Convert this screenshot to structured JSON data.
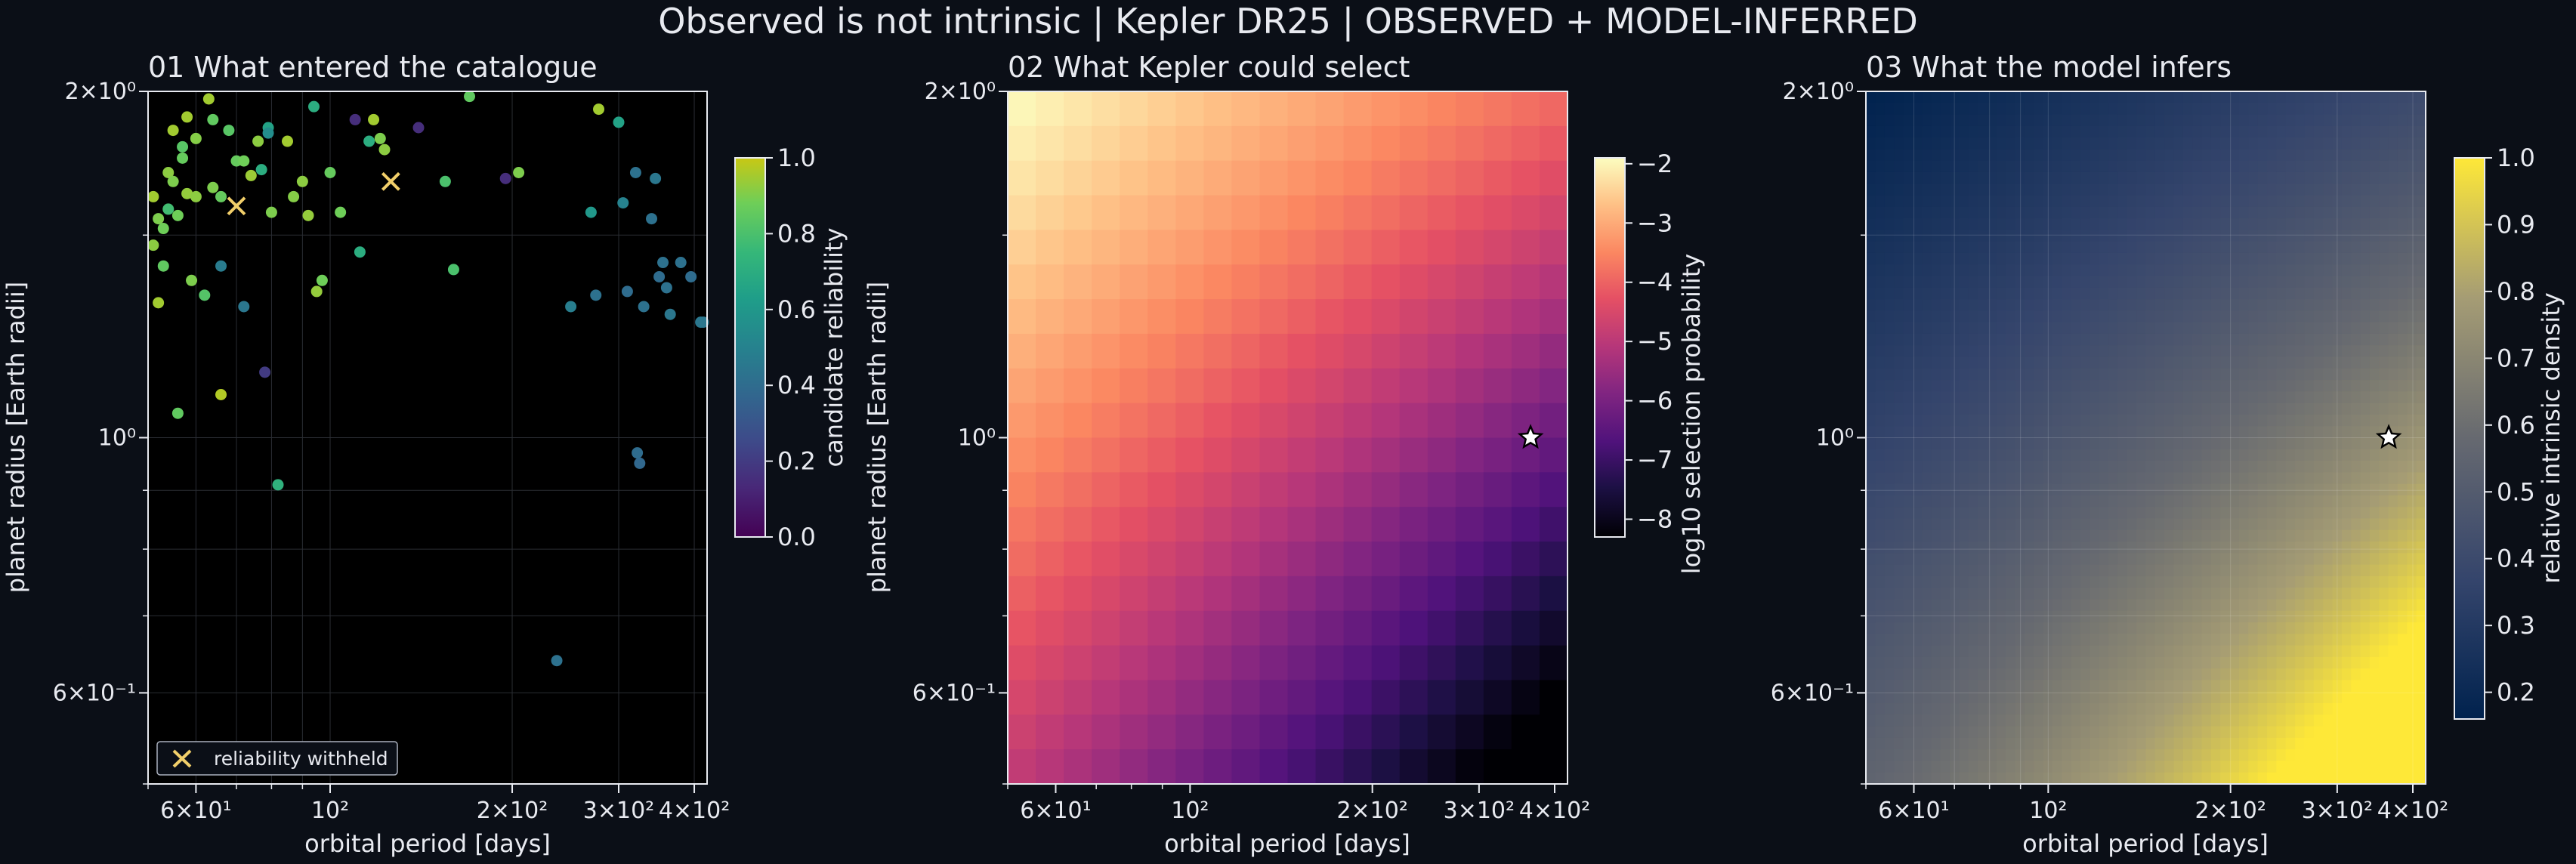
{
  "suptitle": "Observed is not intrinsic | Kepler DR25 | OBSERVED + MODEL-INFERRED",
  "chart_data": [
    {
      "type": "scatter",
      "title": "01  What entered the catalogue",
      "xlabel": "orbital period [days]",
      "ylabel": "planet radius [Earth radii]",
      "xscale": "log",
      "yscale": "log",
      "xlim": [
        50,
        420
      ],
      "ylim": [
        0.5,
        2.0
      ],
      "xticks": [
        {
          "v": 60,
          "label": "6×10¹"
        },
        {
          "v": 100,
          "label": "10²"
        },
        {
          "v": 200,
          "label": "2×10²"
        },
        {
          "v": 300,
          "label": "3×10²"
        },
        {
          "v": 400,
          "label": "4×10²"
        }
      ],
      "yticks": [
        {
          "v": 0.6,
          "label": "6×10⁻¹"
        },
        {
          "v": 1.0,
          "label": "10⁰"
        },
        {
          "v": 2.0,
          "label": "2×10⁰"
        }
      ],
      "colorbar": {
        "label": "candidate reliability",
        "min": 0.0,
        "max": 1.0,
        "ticks": [
          {
            "v": 0.0,
            "label": "0.0"
          },
          {
            "v": 0.2,
            "label": "0.2"
          },
          {
            "v": 0.4,
            "label": "0.4"
          },
          {
            "v": 0.6,
            "label": "0.6"
          },
          {
            "v": 0.8,
            "label": "0.8"
          },
          {
            "v": 1.0,
            "label": "1.0"
          }
        ],
        "colormap": "viridis"
      },
      "legend": {
        "label": "reliability withheld",
        "position": "lower-left"
      },
      "grid": true,
      "points": [
        {
          "x": 51,
          "y": 1.62,
          "c": 0.95
        },
        {
          "x": 51,
          "y": 1.47,
          "c": 0.92
        },
        {
          "x": 52,
          "y": 1.31,
          "c": 0.95
        },
        {
          "x": 52,
          "y": 1.55,
          "c": 0.9
        },
        {
          "x": 53,
          "y": 1.52,
          "c": 0.88
        },
        {
          "x": 53,
          "y": 1.41,
          "c": 0.85
        },
        {
          "x": 54,
          "y": 1.7,
          "c": 0.92
        },
        {
          "x": 54,
          "y": 1.58,
          "c": 0.78
        },
        {
          "x": 55,
          "y": 1.85,
          "c": 0.95
        },
        {
          "x": 55,
          "y": 1.67,
          "c": 0.9
        },
        {
          "x": 56,
          "y": 1.05,
          "c": 0.85
        },
        {
          "x": 56,
          "y": 1.56,
          "c": 0.88
        },
        {
          "x": 57,
          "y": 1.79,
          "c": 0.83
        },
        {
          "x": 57,
          "y": 1.75,
          "c": 0.86
        },
        {
          "x": 58,
          "y": 1.9,
          "c": 0.95
        },
        {
          "x": 58,
          "y": 1.63,
          "c": 0.93
        },
        {
          "x": 59,
          "y": 1.37,
          "c": 0.9
        },
        {
          "x": 60,
          "y": 1.82,
          "c": 0.91
        },
        {
          "x": 60,
          "y": 1.62,
          "c": 0.92
        },
        {
          "x": 62,
          "y": 1.33,
          "c": 0.82
        },
        {
          "x": 63,
          "y": 1.97,
          "c": 0.95
        },
        {
          "x": 64,
          "y": 1.65,
          "c": 0.9
        },
        {
          "x": 64,
          "y": 1.89,
          "c": 0.85
        },
        {
          "x": 66,
          "y": 1.09,
          "c": 0.97
        },
        {
          "x": 66,
          "y": 1.41,
          "c": 0.47
        },
        {
          "x": 66,
          "y": 1.62,
          "c": 0.86
        },
        {
          "x": 68,
          "y": 1.85,
          "c": 0.83
        },
        {
          "x": 70,
          "y": 1.74,
          "c": 0.86
        },
        {
          "x": 72,
          "y": 1.74,
          "c": 0.88
        },
        {
          "x": 72,
          "y": 1.3,
          "c": 0.45
        },
        {
          "x": 74,
          "y": 1.69,
          "c": 0.94
        },
        {
          "x": 76,
          "y": 1.81,
          "c": 0.92
        },
        {
          "x": 77,
          "y": 1.71,
          "c": 0.7
        },
        {
          "x": 78,
          "y": 1.14,
          "c": 0.2
        },
        {
          "x": 79,
          "y": 1.86,
          "c": 0.65
        },
        {
          "x": 79,
          "y": 1.84,
          "c": 0.55
        },
        {
          "x": 80,
          "y": 1.57,
          "c": 0.9
        },
        {
          "x": 82,
          "y": 0.91,
          "c": 0.72
        },
        {
          "x": 85,
          "y": 1.81,
          "c": 0.95
        },
        {
          "x": 87,
          "y": 1.62,
          "c": 0.91
        },
        {
          "x": 90,
          "y": 1.67,
          "c": 0.92
        },
        {
          "x": 92,
          "y": 1.56,
          "c": 0.93
        },
        {
          "x": 94,
          "y": 1.94,
          "c": 0.7
        },
        {
          "x": 95,
          "y": 1.34,
          "c": 0.93
        },
        {
          "x": 97,
          "y": 1.37,
          "c": 0.88
        },
        {
          "x": 100,
          "y": 1.7,
          "c": 0.86
        },
        {
          "x": 104,
          "y": 1.57,
          "c": 0.88
        },
        {
          "x": 110,
          "y": 1.89,
          "c": 0.15
        },
        {
          "x": 112,
          "y": 1.45,
          "c": 0.7
        },
        {
          "x": 116,
          "y": 1.81,
          "c": 0.7
        },
        {
          "x": 118,
          "y": 1.89,
          "c": 0.95
        },
        {
          "x": 121,
          "y": 1.82,
          "c": 0.9
        },
        {
          "x": 123,
          "y": 1.78,
          "c": 0.92
        },
        {
          "x": 140,
          "y": 1.86,
          "c": 0.15
        },
        {
          "x": 155,
          "y": 1.67,
          "c": 0.8
        },
        {
          "x": 160,
          "y": 1.4,
          "c": 0.8
        },
        {
          "x": 170,
          "y": 1.98,
          "c": 0.85
        },
        {
          "x": 195,
          "y": 1.68,
          "c": 0.15
        },
        {
          "x": 205,
          "y": 1.7,
          "c": 0.9
        },
        {
          "x": 237,
          "y": 0.64,
          "c": 0.42
        },
        {
          "x": 250,
          "y": 1.3,
          "c": 0.48
        },
        {
          "x": 270,
          "y": 1.57,
          "c": 0.6
        },
        {
          "x": 275,
          "y": 1.33,
          "c": 0.42
        },
        {
          "x": 278,
          "y": 1.93,
          "c": 0.95
        },
        {
          "x": 300,
          "y": 1.88,
          "c": 0.65
        },
        {
          "x": 305,
          "y": 1.6,
          "c": 0.5
        },
        {
          "x": 310,
          "y": 1.34,
          "c": 0.4
        },
        {
          "x": 320,
          "y": 1.7,
          "c": 0.42
        },
        {
          "x": 322,
          "y": 0.97,
          "c": 0.4
        },
        {
          "x": 325,
          "y": 0.95,
          "c": 0.38
        },
        {
          "x": 330,
          "y": 1.3,
          "c": 0.42
        },
        {
          "x": 340,
          "y": 1.55,
          "c": 0.42
        },
        {
          "x": 345,
          "y": 1.68,
          "c": 0.45
        },
        {
          "x": 350,
          "y": 1.38,
          "c": 0.4
        },
        {
          "x": 355,
          "y": 1.42,
          "c": 0.42
        },
        {
          "x": 360,
          "y": 1.35,
          "c": 0.42
        },
        {
          "x": 365,
          "y": 1.28,
          "c": 0.45
        },
        {
          "x": 380,
          "y": 1.42,
          "c": 0.42
        },
        {
          "x": 395,
          "y": 1.38,
          "c": 0.4
        },
        {
          "x": 410,
          "y": 1.26,
          "c": 0.45
        },
        {
          "x": 414,
          "y": 1.26,
          "c": 0.45
        }
      ],
      "withheld": [
        {
          "x": 70,
          "y": 1.59
        },
        {
          "x": 126,
          "y": 1.67
        }
      ]
    },
    {
      "type": "heatmap",
      "title": "02  What Kepler could select",
      "xlabel": "orbital period [days]",
      "ylabel": "planet radius [Earth radii]",
      "xscale": "log",
      "yscale": "log",
      "xlim": [
        50,
        420
      ],
      "ylim": [
        0.5,
        2.0
      ],
      "xticks": [
        {
          "v": 60,
          "label": "6×10¹"
        },
        {
          "v": 100,
          "label": "10²"
        },
        {
          "v": 200,
          "label": "2×10²"
        },
        {
          "v": 300,
          "label": "3×10²"
        },
        {
          "v": 400,
          "label": "4×10²"
        }
      ],
      "yticks": [
        {
          "v": 0.6,
          "label": "6×10⁻¹"
        },
        {
          "v": 1.0,
          "label": "10⁰"
        },
        {
          "v": 2.0,
          "label": "2×10⁰"
        }
      ],
      "colorbar": {
        "label": "log10 selection probability",
        "min": -8.3,
        "max": -1.9,
        "ticks": [
          {
            "v": -2,
            "label": "−2"
          },
          {
            "v": -3,
            "label": "−3"
          },
          {
            "v": -4,
            "label": "−4"
          },
          {
            "v": -5,
            "label": "−5"
          },
          {
            "v": -6,
            "label": "−6"
          },
          {
            "v": -7,
            "label": "−7"
          },
          {
            "v": -8,
            "label": "−8"
          }
        ],
        "colormap": "magma"
      },
      "grid_cells": {
        "nx": 20,
        "ny": 20
      },
      "value_at_corners": {
        "short_period_large_radius": -1.9,
        "long_period_large_radius": -3.9,
        "short_period_small_radius": -4.9,
        "long_period_small_radius": -8.3
      },
      "marker": {
        "x": 365,
        "y": 1.0,
        "symbol": "star"
      }
    },
    {
      "type": "heatmap",
      "title": "03  What the model infers",
      "xlabel": "orbital period [days]",
      "ylabel": "",
      "xscale": "log",
      "yscale": "log",
      "xlim": [
        50,
        420
      ],
      "ylim": [
        0.5,
        2.0
      ],
      "xticks": [
        {
          "v": 60,
          "label": "6×10¹"
        },
        {
          "v": 100,
          "label": "10²"
        },
        {
          "v": 200,
          "label": "2×10²"
        },
        {
          "v": 300,
          "label": "3×10²"
        },
        {
          "v": 400,
          "label": "4×10²"
        }
      ],
      "yticks": [
        {
          "v": 0.6,
          "label": "6×10⁻¹"
        },
        {
          "v": 1.0,
          "label": "10⁰"
        },
        {
          "v": 2.0,
          "label": "2×10⁰"
        }
      ],
      "colorbar": {
        "label": "relative intrinsic density",
        "min": 0.16,
        "max": 1.0,
        "ticks": [
          {
            "v": 0.2,
            "label": "0.2"
          },
          {
            "v": 0.3,
            "label": "0.3"
          },
          {
            "v": 0.4,
            "label": "0.4"
          },
          {
            "v": 0.5,
            "label": "0.5"
          },
          {
            "v": 0.6,
            "label": "0.6"
          },
          {
            "v": 0.7,
            "label": "0.7"
          },
          {
            "v": 0.8,
            "label": "0.8"
          },
          {
            "v": 0.9,
            "label": "0.9"
          },
          {
            "v": 1.0,
            "label": "1.0"
          }
        ],
        "colormap": "cividis"
      },
      "value_at_corners": {
        "short_period_large_radius": 0.16,
        "long_period_large_radius": 0.4,
        "short_period_small_radius": 0.55,
        "long_period_small_radius": 1.0
      },
      "marker": {
        "x": 365,
        "y": 1.0,
        "symbol": "star"
      },
      "grid": true
    }
  ]
}
